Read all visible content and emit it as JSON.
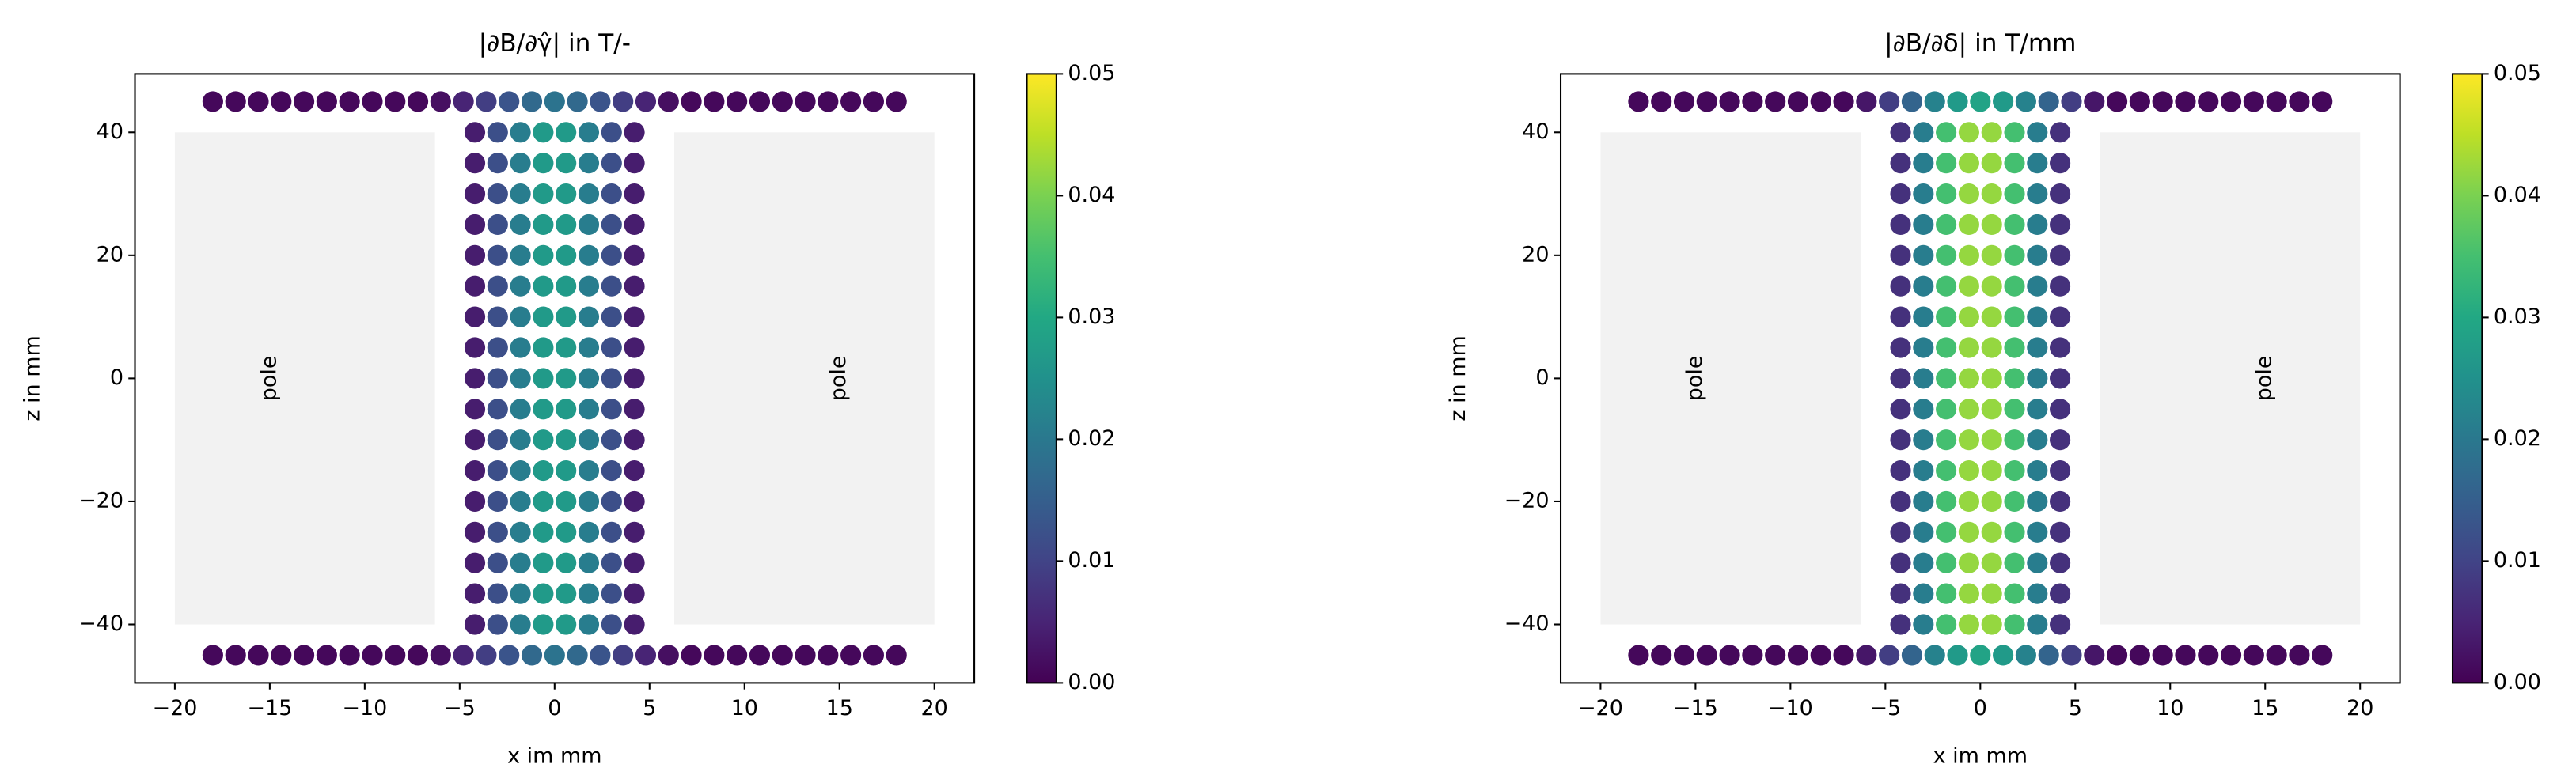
{
  "chart_data": [
    {
      "type": "scatter",
      "title": "|∂B/∂γ̂| in T/-",
      "xlabel": "x im mm",
      "ylabel": "z in mm",
      "x": [
        -18,
        -16.8,
        -15.6,
        -14.4,
        -13.2,
        -12,
        -10.8,
        -9.6,
        -8.4,
        -7.2,
        -6,
        -4.8,
        -3.6,
        -2.4,
        -1.2,
        0,
        1.2,
        2.4,
        3.6,
        4.8,
        6,
        7.2,
        8.4,
        9.6,
        10.8,
        12,
        13.2,
        14.4,
        15.6,
        16.8,
        18,
        -4.2,
        -3,
        -1.8,
        -0.6,
        0.6,
        1.8,
        3,
        4.2,
        -4.2,
        -3,
        -1.8,
        -0.6,
        0.6,
        1.8,
        3,
        4.2,
        -4.2,
        -3,
        -1.8,
        -0.6,
        0.6,
        1.8,
        3,
        4.2,
        -4.2,
        -3,
        -1.8,
        -0.6,
        0.6,
        1.8,
        3,
        4.2,
        -4.2,
        -3,
        -1.8,
        -0.6,
        0.6,
        1.8,
        3,
        4.2,
        -4.2,
        -3,
        -1.8,
        -0.6,
        0.6,
        1.8,
        3,
        4.2,
        -4.2,
        -3,
        -1.8,
        -0.6,
        0.6,
        1.8,
        3,
        4.2,
        -4.2,
        -3,
        -1.8,
        -0.6,
        0.6,
        1.8,
        3,
        4.2,
        -4.2,
        -3,
        -1.8,
        -0.6,
        0.6,
        1.8,
        3,
        4.2,
        -4.2,
        -3,
        -1.8,
        -0.6,
        0.6,
        1.8,
        3,
        4.2,
        -4.2,
        -3,
        -1.8,
        -0.6,
        0.6,
        1.8,
        3,
        4.2,
        -4.2,
        -3,
        -1.8,
        -0.6,
        0.6,
        1.8,
        3,
        4.2,
        -4.2,
        -3,
        -1.8,
        -0.6,
        0.6,
        1.8,
        3,
        4.2,
        -4.2,
        -3,
        -1.8,
        -0.6,
        0.6,
        1.8,
        3,
        4.2,
        -4.2,
        -3,
        -1.8,
        -0.6,
        0.6,
        1.8,
        3,
        4.2,
        -4.2,
        -3,
        -1.8,
        -0.6,
        0.6,
        1.8,
        3,
        4.2,
        -4.2,
        -3,
        -1.8,
        -0.6,
        0.6,
        1.8,
        3,
        4.2,
        -18,
        -16.8,
        -15.6,
        -14.4,
        -13.2,
        -12,
        -10.8,
        -9.6,
        -8.4,
        -7.2,
        -6,
        -4.8,
        -3.6,
        -2.4,
        -1.2,
        0,
        1.2,
        2.4,
        3.6,
        4.8,
        6,
        7.2,
        8.4,
        9.6,
        10.8,
        12,
        13.2,
        14.4,
        15.6,
        16.8,
        18
      ],
      "values": [
        45,
        45,
        45,
        45,
        45,
        45,
        45,
        45,
        45,
        45,
        45,
        45,
        45,
        45,
        45,
        45,
        45,
        45,
        45,
        45,
        45,
        45,
        45,
        45,
        45,
        45,
        45,
        45,
        45,
        45,
        45,
        40,
        40,
        40,
        40,
        40,
        40,
        40,
        40,
        35,
        35,
        35,
        35,
        35,
        35,
        35,
        35,
        30,
        30,
        30,
        30,
        30,
        30,
        30,
        30,
        25,
        25,
        25,
        25,
        25,
        25,
        25,
        25,
        20,
        20,
        20,
        20,
        20,
        20,
        20,
        20,
        15,
        15,
        15,
        15,
        15,
        15,
        15,
        15,
        10,
        10,
        10,
        10,
        10,
        10,
        10,
        10,
        5,
        5,
        5,
        5,
        5,
        5,
        5,
        5,
        0,
        0,
        0,
        0,
        0,
        0,
        0,
        0,
        -5,
        -5,
        -5,
        -5,
        -5,
        -5,
        -5,
        -5,
        -10,
        -10,
        -10,
        -10,
        -10,
        -10,
        -10,
        -10,
        -15,
        -15,
        -15,
        -15,
        -15,
        -15,
        -15,
        -15,
        -20,
        -20,
        -20,
        -20,
        -20,
        -20,
        -20,
        -20,
        -25,
        -25,
        -25,
        -25,
        -25,
        -25,
        -25,
        -25,
        -30,
        -30,
        -30,
        -30,
        -30,
        -30,
        -30,
        -30,
        -35,
        -35,
        -35,
        -35,
        -35,
        -35,
        -35,
        -35,
        -40,
        -40,
        -40,
        -40,
        -40,
        -40,
        -40,
        -40,
        -45,
        -45,
        -45,
        -45,
        -45,
        -45,
        -45,
        -45,
        -45,
        -45,
        -45,
        -45,
        -45,
        -45,
        -45,
        -45,
        -45,
        -45,
        -45,
        -45,
        -45,
        -45,
        -45,
        -45,
        -45,
        -45,
        -45,
        -45,
        -45,
        -45,
        -45
      ],
      "c": [
        0.001,
        0.001,
        0.001,
        0.001,
        0.001,
        0.001,
        0.001,
        0.001,
        0.001,
        0.001,
        0.002,
        0.005,
        0.009,
        0.013,
        0.017,
        0.019,
        0.017,
        0.013,
        0.009,
        0.005,
        0.002,
        0.001,
        0.001,
        0.001,
        0.001,
        0.001,
        0.001,
        0.001,
        0.001,
        0.001,
        0.001,
        0.004,
        0.012,
        0.021,
        0.027,
        0.027,
        0.021,
        0.012,
        0.004,
        0.004,
        0.012,
        0.021,
        0.027,
        0.027,
        0.021,
        0.012,
        0.004,
        0.004,
        0.012,
        0.021,
        0.027,
        0.027,
        0.021,
        0.012,
        0.004,
        0.004,
        0.012,
        0.021,
        0.027,
        0.027,
        0.021,
        0.012,
        0.004,
        0.004,
        0.012,
        0.021,
        0.027,
        0.027,
        0.021,
        0.012,
        0.004,
        0.004,
        0.012,
        0.021,
        0.027,
        0.027,
        0.021,
        0.012,
        0.004,
        0.004,
        0.012,
        0.021,
        0.027,
        0.027,
        0.021,
        0.012,
        0.004,
        0.004,
        0.012,
        0.021,
        0.027,
        0.027,
        0.021,
        0.012,
        0.004,
        0.004,
        0.012,
        0.021,
        0.027,
        0.027,
        0.021,
        0.012,
        0.004,
        0.004,
        0.012,
        0.021,
        0.027,
        0.027,
        0.021,
        0.012,
        0.004,
        0.004,
        0.012,
        0.021,
        0.027,
        0.027,
        0.021,
        0.012,
        0.004,
        0.004,
        0.012,
        0.021,
        0.027,
        0.027,
        0.021,
        0.012,
        0.004,
        0.004,
        0.012,
        0.021,
        0.027,
        0.027,
        0.021,
        0.012,
        0.004,
        0.004,
        0.012,
        0.021,
        0.027,
        0.027,
        0.021,
        0.012,
        0.004,
        0.004,
        0.012,
        0.021,
        0.027,
        0.027,
        0.021,
        0.012,
        0.004,
        0.004,
        0.012,
        0.021,
        0.027,
        0.027,
        0.021,
        0.012,
        0.004,
        0.004,
        0.012,
        0.021,
        0.027,
        0.027,
        0.021,
        0.012,
        0.004,
        0.001,
        0.001,
        0.001,
        0.001,
        0.001,
        0.001,
        0.001,
        0.001,
        0.001,
        0.001,
        0.002,
        0.005,
        0.009,
        0.013,
        0.017,
        0.019,
        0.017,
        0.013,
        0.009,
        0.005,
        0.002,
        0.001,
        0.001,
        0.001,
        0.001,
        0.001,
        0.001,
        0.001,
        0.001,
        0.001,
        0.001
      ],
      "colormap": "viridis",
      "clim": [
        0,
        0.05
      ],
      "cticks": [
        {
          "value": 0,
          "label": "0.00"
        },
        0.01,
        0.02,
        0.03,
        0.04,
        0.05
      ],
      "xlim": [
        -22.1,
        22.1
      ],
      "xticks": [
        {
          "value": -20,
          "label": "−20"
        },
        {
          "value": -15,
          "label": "−15"
        },
        {
          "value": -10,
          "label": "−10"
        },
        {
          "value": -5,
          "label": "−5"
        },
        0,
        5,
        10,
        15,
        20
      ],
      "ylim": [
        -49.5,
        49.5
      ],
      "yticks": [
        {
          "value": -40,
          "label": "−40"
        },
        {
          "value": -20,
          "label": "−20"
        },
        0,
        20,
        40
      ],
      "shapes": [
        {
          "x0": -20,
          "x1": -6.3,
          "y0": -40,
          "y1": 40,
          "color": "#f2f2f2"
        },
        {
          "x0": 6.3,
          "x1": 20,
          "y0": -40,
          "y1": 40,
          "color": "#f2f2f2"
        }
      ],
      "annotations": [
        {
          "text": "pole",
          "x": -15,
          "y": 0
        },
        {
          "text": "pole",
          "x": 15,
          "y": 0
        }
      ]
    },
    {
      "type": "scatter",
      "title": "|∂B/∂δ| in T/mm",
      "xlabel": "x im mm",
      "ylabel": "z in mm",
      "x": [
        -18,
        -16.8,
        -15.6,
        -14.4,
        -13.2,
        -12,
        -10.8,
        -9.6,
        -8.4,
        -7.2,
        -6,
        -4.8,
        -3.6,
        -2.4,
        -1.2,
        0,
        1.2,
        2.4,
        3.6,
        4.8,
        6,
        7.2,
        8.4,
        9.6,
        10.8,
        12,
        13.2,
        14.4,
        15.6,
        16.8,
        18,
        -4.2,
        -3,
        -1.8,
        -0.6,
        0.6,
        1.8,
        3,
        4.2,
        -4.2,
        -3,
        -1.8,
        -0.6,
        0.6,
        1.8,
        3,
        4.2,
        -4.2,
        -3,
        -1.8,
        -0.6,
        0.6,
        1.8,
        3,
        4.2,
        -4.2,
        -3,
        -1.8,
        -0.6,
        0.6,
        1.8,
        3,
        4.2,
        -4.2,
        -3,
        -1.8,
        -0.6,
        0.6,
        1.8,
        3,
        4.2,
        -4.2,
        -3,
        -1.8,
        -0.6,
        0.6,
        1.8,
        3,
        4.2,
        -4.2,
        -3,
        -1.8,
        -0.6,
        0.6,
        1.8,
        3,
        4.2,
        -4.2,
        -3,
        -1.8,
        -0.6,
        0.6,
        1.8,
        3,
        4.2,
        -4.2,
        -3,
        -1.8,
        -0.6,
        0.6,
        1.8,
        3,
        4.2,
        -4.2,
        -3,
        -1.8,
        -0.6,
        0.6,
        1.8,
        3,
        4.2,
        -4.2,
        -3,
        -1.8,
        -0.6,
        0.6,
        1.8,
        3,
        4.2,
        -4.2,
        -3,
        -1.8,
        -0.6,
        0.6,
        1.8,
        3,
        4.2,
        -4.2,
        -3,
        -1.8,
        -0.6,
        0.6,
        1.8,
        3,
        4.2,
        -4.2,
        -3,
        -1.8,
        -0.6,
        0.6,
        1.8,
        3,
        4.2,
        -4.2,
        -3,
        -1.8,
        -0.6,
        0.6,
        1.8,
        3,
        4.2,
        -4.2,
        -3,
        -1.8,
        -0.6,
        0.6,
        1.8,
        3,
        4.2,
        -4.2,
        -3,
        -1.8,
        -0.6,
        0.6,
        1.8,
        3,
        4.2,
        -18,
        -16.8,
        -15.6,
        -14.4,
        -13.2,
        -12,
        -10.8,
        -9.6,
        -8.4,
        -7.2,
        -6,
        -4.8,
        -3.6,
        -2.4,
        -1.2,
        0,
        1.2,
        2.4,
        3.6,
        4.8,
        6,
        7.2,
        8.4,
        9.6,
        10.8,
        12,
        13.2,
        14.4,
        15.6,
        16.8,
        18
      ],
      "values": [
        45,
        45,
        45,
        45,
        45,
        45,
        45,
        45,
        45,
        45,
        45,
        45,
        45,
        45,
        45,
        45,
        45,
        45,
        45,
        45,
        45,
        45,
        45,
        45,
        45,
        45,
        45,
        45,
        45,
        45,
        45,
        40,
        40,
        40,
        40,
        40,
        40,
        40,
        40,
        35,
        35,
        35,
        35,
        35,
        35,
        35,
        35,
        30,
        30,
        30,
        30,
        30,
        30,
        30,
        30,
        25,
        25,
        25,
        25,
        25,
        25,
        25,
        25,
        20,
        20,
        20,
        20,
        20,
        20,
        20,
        20,
        15,
        15,
        15,
        15,
        15,
        15,
        15,
        15,
        10,
        10,
        10,
        10,
        10,
        10,
        10,
        10,
        5,
        5,
        5,
        5,
        5,
        5,
        5,
        5,
        0,
        0,
        0,
        0,
        0,
        0,
        0,
        0,
        -5,
        -5,
        -5,
        -5,
        -5,
        -5,
        -5,
        -5,
        -10,
        -10,
        -10,
        -10,
        -10,
        -10,
        -10,
        -10,
        -15,
        -15,
        -15,
        -15,
        -15,
        -15,
        -15,
        -15,
        -20,
        -20,
        -20,
        -20,
        -20,
        -20,
        -20,
        -20,
        -25,
        -25,
        -25,
        -25,
        -25,
        -25,
        -25,
        -25,
        -30,
        -30,
        -30,
        -30,
        -30,
        -30,
        -30,
        -30,
        -35,
        -35,
        -35,
        -35,
        -35,
        -35,
        -35,
        -35,
        -40,
        -40,
        -40,
        -40,
        -40,
        -40,
        -40,
        -40,
        -45,
        -45,
        -45,
        -45,
        -45,
        -45,
        -45,
        -45,
        -45,
        -45,
        -45,
        -45,
        -45,
        -45,
        -45,
        -45,
        -45,
        -45,
        -45,
        -45,
        -45,
        -45,
        -45,
        -45,
        -45,
        -45,
        -45,
        -45,
        -45,
        -45,
        -45
      ],
      "c": [
        0.001,
        0.001,
        0.001,
        0.001,
        0.001,
        0.001,
        0.001,
        0.001,
        0.001,
        0.001,
        0.003,
        0.009,
        0.016,
        0.022,
        0.027,
        0.029,
        0.027,
        0.022,
        0.016,
        0.009,
        0.003,
        0.001,
        0.001,
        0.001,
        0.001,
        0.001,
        0.001,
        0.001,
        0.001,
        0.001,
        0.001,
        0.007,
        0.021,
        0.035,
        0.042,
        0.042,
        0.035,
        0.021,
        0.007,
        0.007,
        0.021,
        0.035,
        0.042,
        0.042,
        0.035,
        0.021,
        0.007,
        0.007,
        0.021,
        0.035,
        0.042,
        0.042,
        0.035,
        0.021,
        0.007,
        0.007,
        0.021,
        0.035,
        0.042,
        0.042,
        0.035,
        0.021,
        0.007,
        0.007,
        0.021,
        0.035,
        0.042,
        0.042,
        0.035,
        0.021,
        0.007,
        0.007,
        0.021,
        0.035,
        0.042,
        0.042,
        0.035,
        0.021,
        0.007,
        0.007,
        0.021,
        0.035,
        0.042,
        0.042,
        0.035,
        0.021,
        0.007,
        0.007,
        0.021,
        0.035,
        0.042,
        0.042,
        0.035,
        0.021,
        0.007,
        0.007,
        0.021,
        0.035,
        0.042,
        0.042,
        0.035,
        0.021,
        0.007,
        0.007,
        0.021,
        0.035,
        0.042,
        0.042,
        0.035,
        0.021,
        0.007,
        0.007,
        0.021,
        0.035,
        0.042,
        0.042,
        0.035,
        0.021,
        0.007,
        0.007,
        0.021,
        0.035,
        0.042,
        0.042,
        0.035,
        0.021,
        0.007,
        0.007,
        0.021,
        0.035,
        0.042,
        0.042,
        0.035,
        0.021,
        0.007,
        0.007,
        0.021,
        0.035,
        0.042,
        0.042,
        0.035,
        0.021,
        0.007,
        0.007,
        0.021,
        0.035,
        0.042,
        0.042,
        0.035,
        0.021,
        0.007,
        0.007,
        0.021,
        0.035,
        0.042,
        0.042,
        0.035,
        0.021,
        0.007,
        0.007,
        0.021,
        0.035,
        0.042,
        0.042,
        0.035,
        0.021,
        0.007,
        0.001,
        0.001,
        0.001,
        0.001,
        0.001,
        0.001,
        0.001,
        0.001,
        0.001,
        0.001,
        0.003,
        0.009,
        0.016,
        0.022,
        0.027,
        0.029,
        0.027,
        0.022,
        0.016,
        0.009,
        0.003,
        0.001,
        0.001,
        0.001,
        0.001,
        0.001,
        0.001,
        0.001,
        0.001,
        0.001,
        0.001
      ],
      "colormap": "viridis",
      "clim": [
        0,
        0.05
      ],
      "cticks": [
        {
          "value": 0,
          "label": "0.00"
        },
        0.01,
        0.02,
        0.03,
        0.04,
        0.05
      ],
      "xlim": [
        -22.1,
        22.1
      ],
      "xticks": [
        {
          "value": -20,
          "label": "−20"
        },
        {
          "value": -15,
          "label": "−15"
        },
        {
          "value": -10,
          "label": "−10"
        },
        {
          "value": -5,
          "label": "−5"
        },
        0,
        5,
        10,
        15,
        20
      ],
      "ylim": [
        -49.5,
        49.5
      ],
      "yticks": [
        {
          "value": -40,
          "label": "−40"
        },
        {
          "value": -20,
          "label": "−20"
        },
        0,
        20,
        40
      ],
      "shapes": [
        {
          "x0": -20,
          "x1": -6.3,
          "y0": -40,
          "y1": 40,
          "color": "#f2f2f2"
        },
        {
          "x0": 6.3,
          "x1": 20,
          "y0": -40,
          "y1": 40,
          "color": "#f2f2f2"
        }
      ],
      "annotations": [
        {
          "text": "pole",
          "x": -15,
          "y": 0
        },
        {
          "text": "pole",
          "x": 15,
          "y": 0
        }
      ]
    }
  ]
}
